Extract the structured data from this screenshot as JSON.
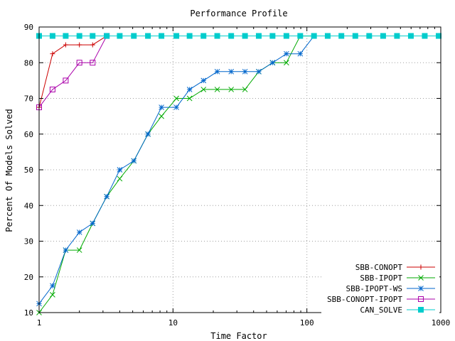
{
  "chart_data": {
    "type": "line",
    "title": "Performance Profile",
    "xlabel": "Time Factor",
    "ylabel": "Percent Of Models Solved",
    "xscale": "log",
    "xlim": [
      1,
      1000
    ],
    "ylim": [
      10,
      90
    ],
    "xticks": [
      1,
      10,
      100,
      1000
    ],
    "xtick_labels": [
      "1",
      "10",
      "100",
      "1000"
    ],
    "yticks": [
      10,
      20,
      30,
      40,
      50,
      60,
      70,
      80,
      90
    ],
    "ytick_labels": [
      "10",
      "20",
      "30",
      "40",
      "50",
      "60",
      "70",
      "80",
      "90"
    ],
    "grid": true,
    "legend_position": "bottom-right",
    "series": [
      {
        "name": "SBB-CONOPT",
        "color": "#cc0000",
        "marker": "plus",
        "x": [
          1,
          1.26,
          1.58,
          2.0,
          2.51,
          3.2
        ],
        "y": [
          67.5,
          82.5,
          85,
          85,
          85,
          87.5
        ]
      },
      {
        "name": "SBB-IPOPT",
        "color": "#00aa00",
        "marker": "cross",
        "x": [
          1,
          1.26,
          1.58,
          2.0,
          2.51,
          3.2,
          4.0,
          5.1,
          6.5,
          8.2,
          10.6,
          13.3,
          16.9,
          21.4,
          27.2,
          34.5,
          43.7,
          55.4,
          70.3,
          89.2,
          113
        ],
        "y": [
          10,
          15,
          27.5,
          27.5,
          35,
          42.5,
          47.5,
          52.5,
          60,
          65,
          70,
          70,
          72.5,
          72.5,
          72.5,
          72.5,
          77.5,
          80,
          80,
          87.5,
          87.5
        ]
      },
      {
        "name": "SBB-IPOPT-WS",
        "color": "#0066cc",
        "marker": "star",
        "x": [
          1,
          1.26,
          1.58,
          2.0,
          2.51,
          3.2,
          4.0,
          5.1,
          6.5,
          8.2,
          10.6,
          13.3,
          16.9,
          21.4,
          27.2,
          34.5,
          43.7,
          55.4,
          70.3,
          89.2,
          113
        ],
        "y": [
          12.5,
          17.5,
          27.5,
          32.5,
          35,
          42.5,
          50,
          52.5,
          60,
          67.5,
          67.5,
          72.5,
          75,
          77.5,
          77.5,
          77.5,
          77.5,
          80,
          82.5,
          82.5,
          87.5
        ]
      },
      {
        "name": "SBB-CONOPT-IPOPT",
        "color": "#aa00aa",
        "marker": "square-open",
        "x": [
          1,
          1.26,
          1.58,
          2.0,
          2.51,
          3.2
        ],
        "y": [
          67.5,
          72.5,
          75,
          80,
          80,
          87.5
        ]
      },
      {
        "name": "CAN_SOLVE",
        "color": "#00cccc",
        "marker": "square-filled",
        "x": [
          1,
          1.26,
          1.58,
          2.0,
          2.51,
          3.2,
          4.0,
          5.1,
          6.5,
          8.2,
          10.6,
          13.3,
          16.9,
          21.4,
          27.2,
          34.5,
          43.7,
          55.4,
          70.3,
          89.2,
          113,
          143,
          181,
          230,
          292,
          371,
          471,
          598,
          759,
          964
        ],
        "y": [
          87.5,
          87.5,
          87.5,
          87.5,
          87.5,
          87.5,
          87.5,
          87.5,
          87.5,
          87.5,
          87.5,
          87.5,
          87.5,
          87.5,
          87.5,
          87.5,
          87.5,
          87.5,
          87.5,
          87.5,
          87.5,
          87.5,
          87.5,
          87.5,
          87.5,
          87.5,
          87.5,
          87.5,
          87.5,
          87.5
        ]
      }
    ]
  }
}
